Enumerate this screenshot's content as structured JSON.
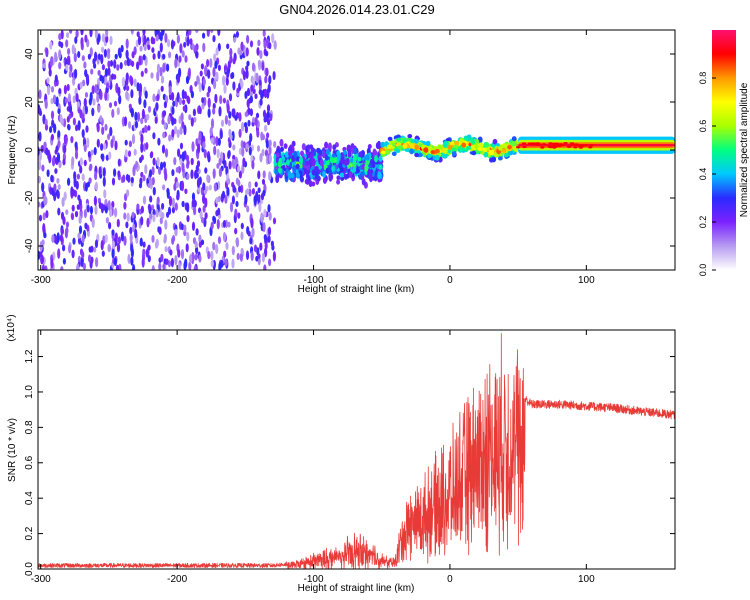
{
  "title": "GN04.2026.014.23.01.C29",
  "chart_data": [
    {
      "type": "heatmap",
      "name": "spectrogram",
      "xlabel": "Height of straight line (km)",
      "ylabel": "Frequency (Hz)",
      "xlim": [
        -302,
        165
      ],
      "ylim": [
        -50,
        50
      ],
      "x_ticks": [
        -300,
        -200,
        -100,
        0,
        100
      ],
      "x_tick_labels": [
        "-300",
        "-200",
        "-100",
        "0",
        "100"
      ],
      "y_ticks": [
        -40,
        -20,
        0,
        20,
        40
      ],
      "y_tick_labels": [
        "-40",
        "-20",
        "0",
        "20",
        "40"
      ],
      "colorbar": {
        "label": "Normalized spectral amplitude",
        "range": [
          0,
          1
        ],
        "ticks": [
          0.0,
          0.2,
          0.4,
          0.6,
          0.8
        ],
        "tick_labels": [
          "0.0",
          "0.2",
          "0.4",
          "0.6",
          "0.8"
        ],
        "colormap": [
          "#ffffff",
          "#b69bf0",
          "#7b22ff",
          "#2a2aff",
          "#00c8ff",
          "#00ff80",
          "#a8ff00",
          "#ffff00",
          "#ff9900",
          "#ff0000",
          "#ff1070"
        ]
      },
      "regions": [
        {
          "description": "broadband noise",
          "x_range": [
            -302,
            -128
          ],
          "freq_range": [
            -50,
            50
          ],
          "amplitude": 0.15
        },
        {
          "description": "noisy dispersed signal",
          "x_range": [
            -128,
            -50
          ],
          "freq_center": -6,
          "freq_halfwidth": 10,
          "amplitude": 0.3
        },
        {
          "description": "transition signal",
          "x_range": [
            -50,
            50
          ],
          "freq_center": 1,
          "freq_halfwidth": 4,
          "amplitude": 0.55
        },
        {
          "description": "strong narrow carrier",
          "x_range": [
            50,
            165
          ],
          "freq_center": 2,
          "freq_halfwidth": 2,
          "amplitude": 0.95
        }
      ]
    },
    {
      "type": "line",
      "name": "snr",
      "xlabel": "Height of straight line (km)",
      "ylabel": "SNR (10 * v/v)",
      "y_multiplier": "(x10⁴)",
      "xlim": [
        -302,
        165
      ],
      "ylim": [
        0,
        1.35
      ],
      "x_ticks": [
        -300,
        -200,
        -100,
        0,
        100
      ],
      "x_tick_labels": [
        "-300",
        "-200",
        "-100",
        "0",
        "100"
      ],
      "y_ticks": [
        0.0,
        0.2,
        0.4,
        0.6,
        0.8,
        1.0,
        1.2
      ],
      "y_tick_labels": [
        "0.0",
        "0.2",
        "0.4",
        "0.6",
        "0.8",
        "1.0",
        "1.2"
      ],
      "color": "#e83a36",
      "series": [
        {
          "name": "SNR envelope",
          "x": [
            -302,
            -200,
            -130,
            -115,
            -100,
            -80,
            -70,
            -60,
            -55,
            -50,
            -45,
            -40,
            -35,
            -30,
            -20,
            -10,
            0,
            10,
            20,
            30,
            40,
            50,
            55,
            60,
            80,
            100,
            120,
            140,
            165
          ],
          "y": [
            0.02,
            0.02,
            0.02,
            0.03,
            0.06,
            0.1,
            0.14,
            0.12,
            0.1,
            0.07,
            0.05,
            0.06,
            0.25,
            0.35,
            0.4,
            0.5,
            0.58,
            0.72,
            0.85,
            0.95,
            1.0,
            0.98,
            0.96,
            0.93,
            0.93,
            0.92,
            0.91,
            0.89,
            0.87
          ]
        }
      ]
    }
  ]
}
